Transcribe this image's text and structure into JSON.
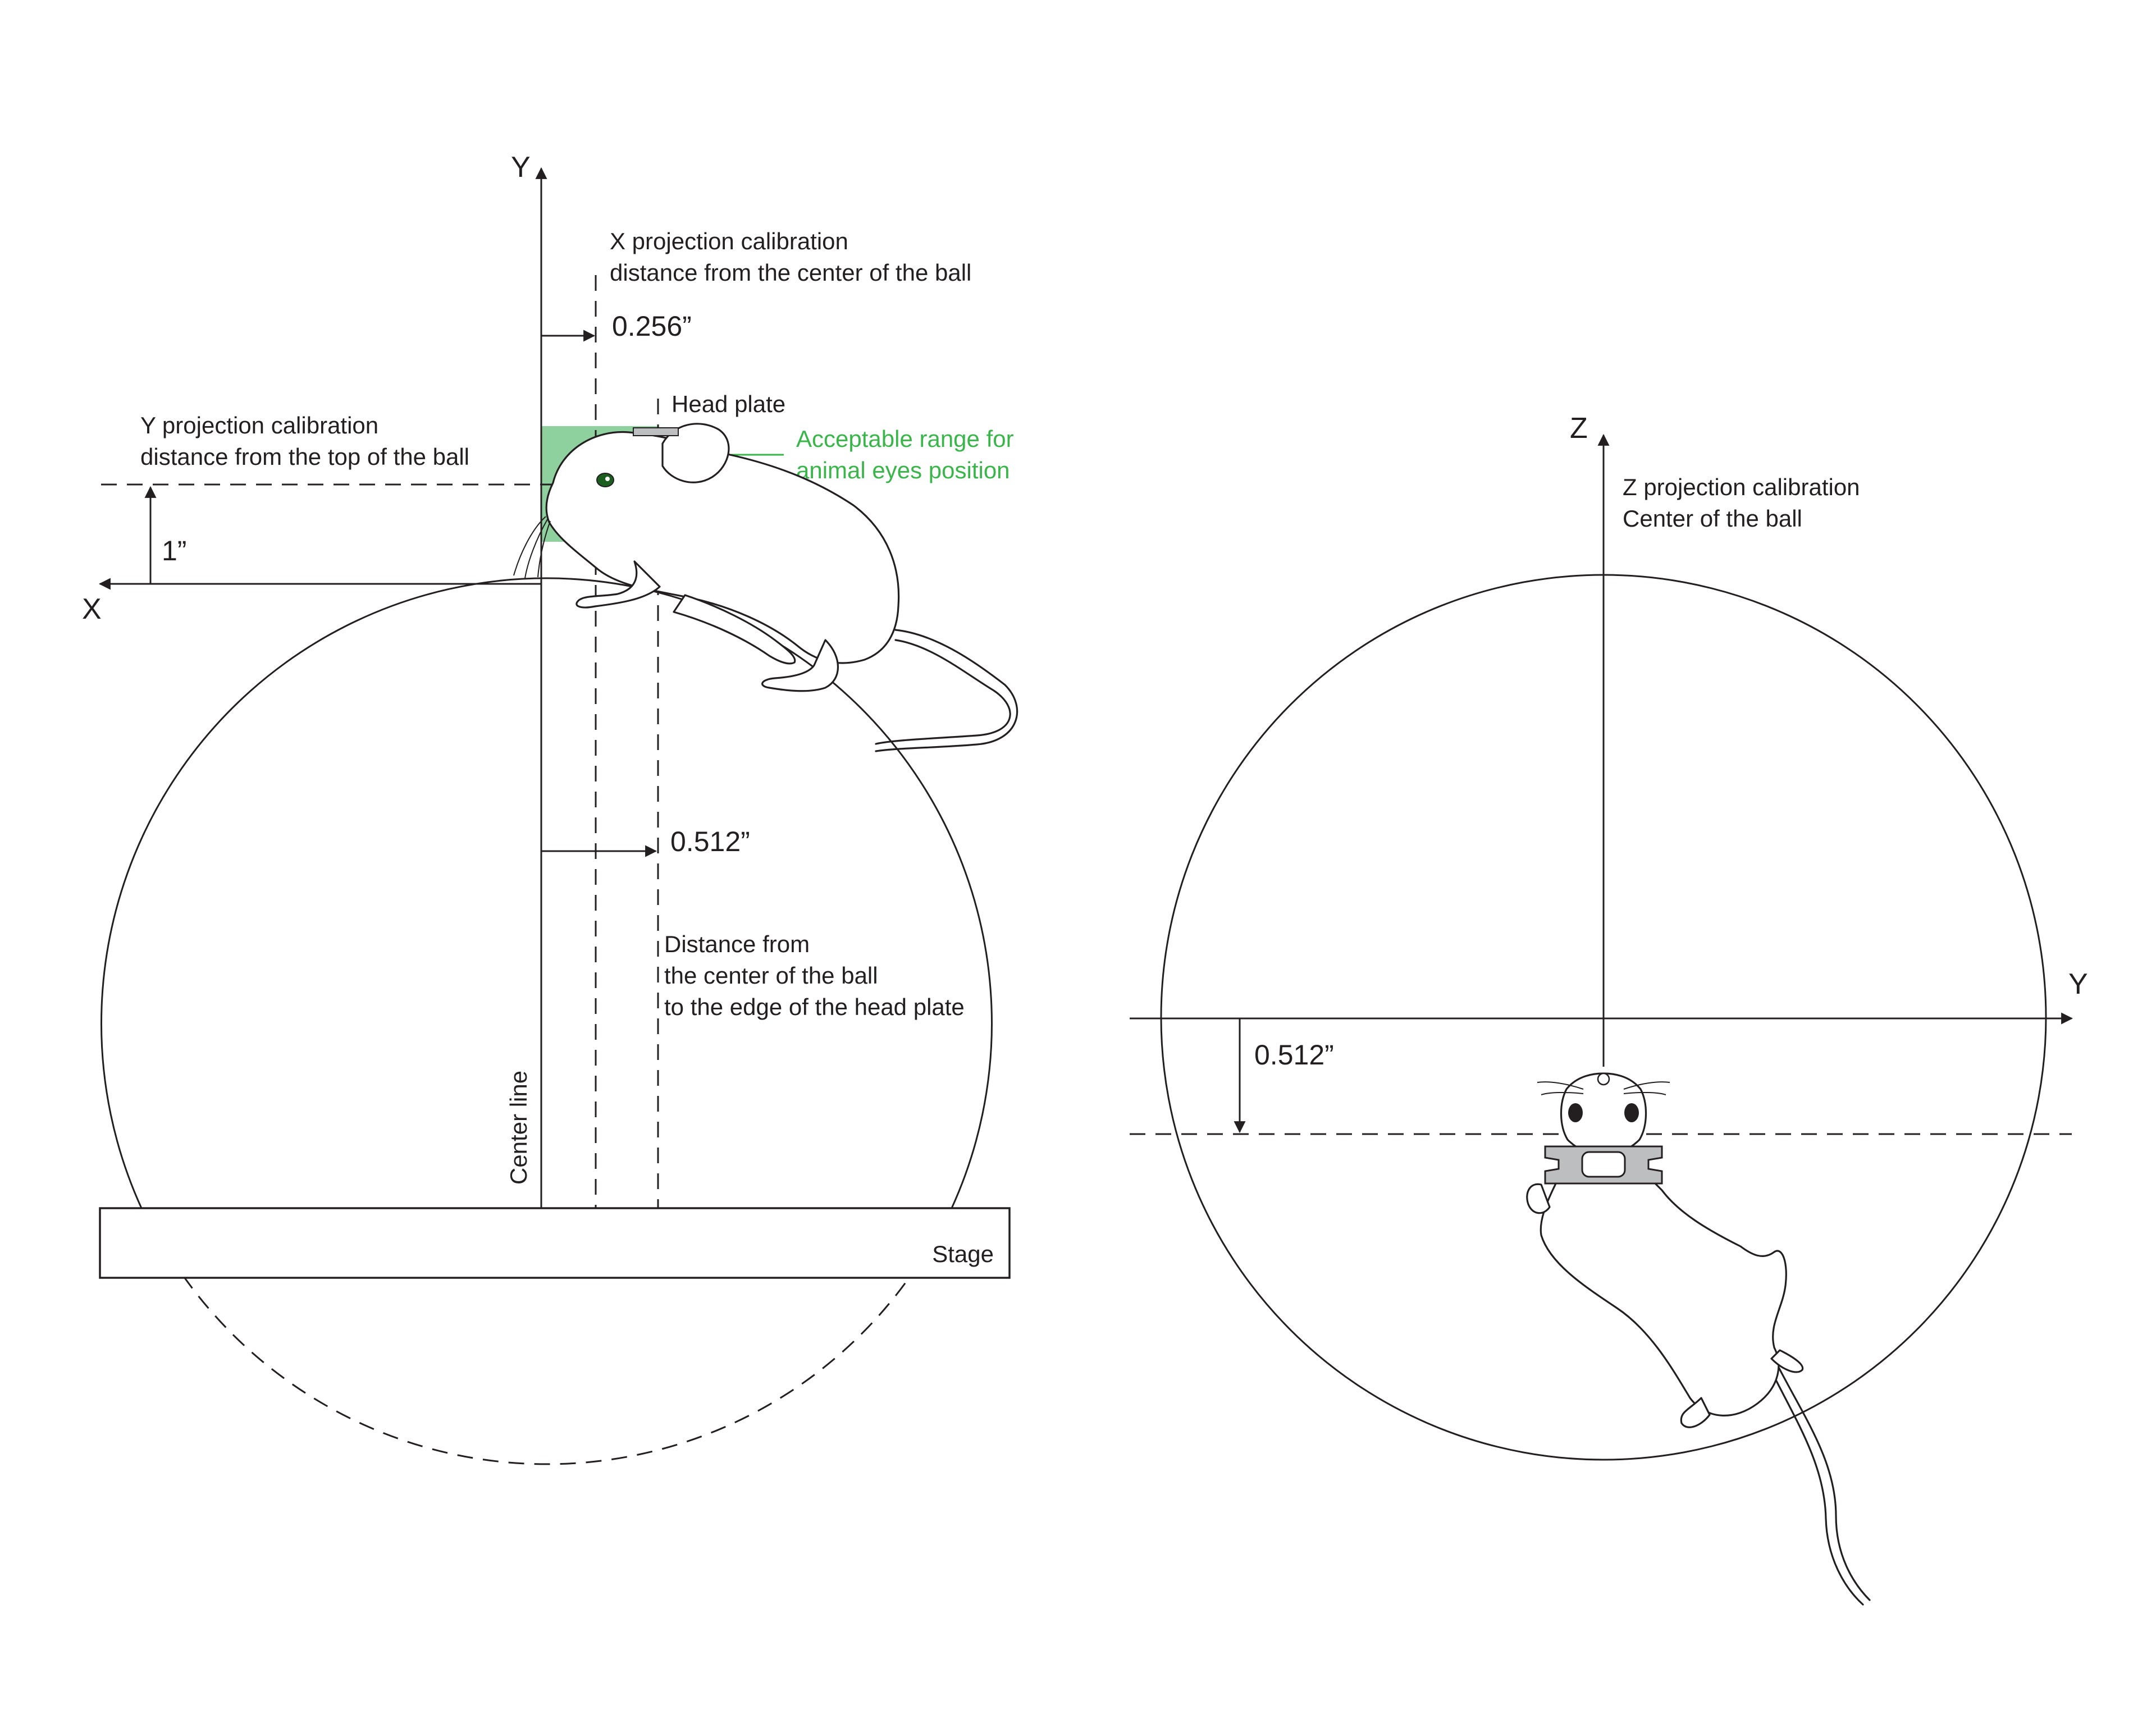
{
  "side_view": {
    "axis_y": "Y",
    "axis_x": "X",
    "x_projection_label_1": "X projection calibration",
    "x_projection_label_2": "distance from the center of the ball",
    "x_offset_value": "0.256”",
    "y_projection_label_1": "Y projection calibration",
    "y_projection_label_2": "distance from the top of the ball",
    "y_offset_value": "1”",
    "head_plate_label": "Head plate",
    "acceptable_range_1": "Acceptable range for",
    "acceptable_range_2": "animal eyes position",
    "headplate_offset_value": "0.512”",
    "distance_label_1": "Distance from",
    "distance_label_2": "the center of the ball",
    "distance_label_3": "to the edge of the head plate",
    "center_line_label": "Center line",
    "stage_label": "Stage"
  },
  "top_view": {
    "axis_z": "Z",
    "axis_y": "Y",
    "z_projection_label_1": "Z projection calibration",
    "z_projection_label_2": "Center of the ball",
    "offset_value": "0.512”"
  },
  "colors": {
    "green_zone": "#8fd19e",
    "green_text": "#39b54a",
    "line": "#231f20",
    "head_plate_fill": "#bcbec0"
  }
}
